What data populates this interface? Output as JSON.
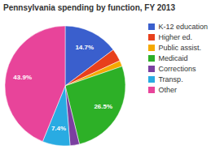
{
  "chart_data": {
    "type": "pie",
    "title": "Pennsylvania spending by function, FY 2013",
    "categories": [
      "K-12 education",
      "Higher ed.",
      "Public assist.",
      "Medicaid",
      "Corrections",
      "Transp.",
      "Other"
    ],
    "values": [
      14.7,
      3.4,
      1.6,
      26.5,
      2.5,
      7.4,
      43.9
    ],
    "value_labels": [
      "14.7%",
      null,
      null,
      "26.5%",
      null,
      "7.4%",
      "43.9%"
    ],
    "colors": [
      "#3a5fcd",
      "#e8401c",
      "#f5a800",
      "#2db027",
      "#7b3fa0",
      "#29abe2",
      "#e8449a"
    ],
    "data_labels": true,
    "legend": "right"
  }
}
